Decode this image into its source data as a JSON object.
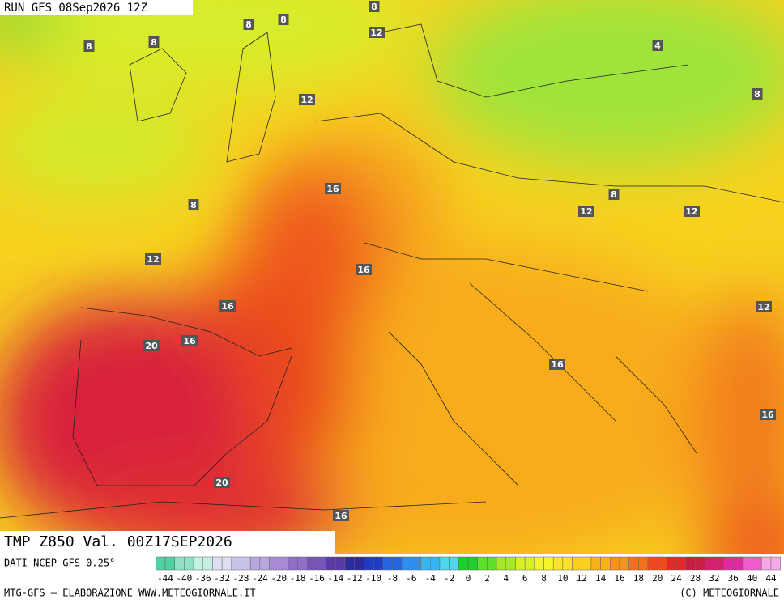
{
  "header": {
    "run": "RUN GFS 08Sep2026 12Z",
    "title": "TMP Z850 Val. 00Z17SEP2026"
  },
  "contour_labels": [
    8,
    8,
    8,
    8,
    8,
    12,
    4,
    8,
    12,
    16,
    8,
    8,
    12,
    12,
    12,
    16,
    16,
    12,
    16,
    20,
    16,
    16,
    20,
    16
  ],
  "colorbar": {
    "source": "DATI NCEP GFS 0.25°",
    "ticks": [
      -44,
      -40,
      -36,
      -32,
      -28,
      -24,
      -20,
      -18,
      -16,
      -14,
      -12,
      -10,
      -8,
      -6,
      -4,
      -2,
      0,
      2,
      4,
      6,
      8,
      10,
      12,
      14,
      16,
      18,
      20,
      24,
      28,
      32,
      36,
      40,
      44
    ],
    "colors": [
      "#4fd1a2",
      "#8fe3c4",
      "#c4efe3",
      "#dde0f2",
      "#c9c3ea",
      "#b7a7de",
      "#a68bd3",
      "#8f6fc8",
      "#7654b8",
      "#5a3aa6",
      "#2c2a9c",
      "#1f3bc4",
      "#2466e0",
      "#2d8ff0",
      "#36b5f4",
      "#4fd6ef",
      "#1dcf2a",
      "#5fe02a",
      "#a5ea2a",
      "#d8f02a",
      "#f4f42a",
      "#fae32a",
      "#fbcf20",
      "#fab21c",
      "#f7931a",
      "#f4701a",
      "#ee4a1e",
      "#e02a2a",
      "#c81e46",
      "#d2226e",
      "#e02aa0",
      "#ef5ccc",
      "#f6a8e8"
    ]
  },
  "footer": {
    "credit": "MTG-GFS — ELABORAZIONE WWW.METEOGIORNALE.IT",
    "copyright": "(C) METEOGIORNALE"
  }
}
